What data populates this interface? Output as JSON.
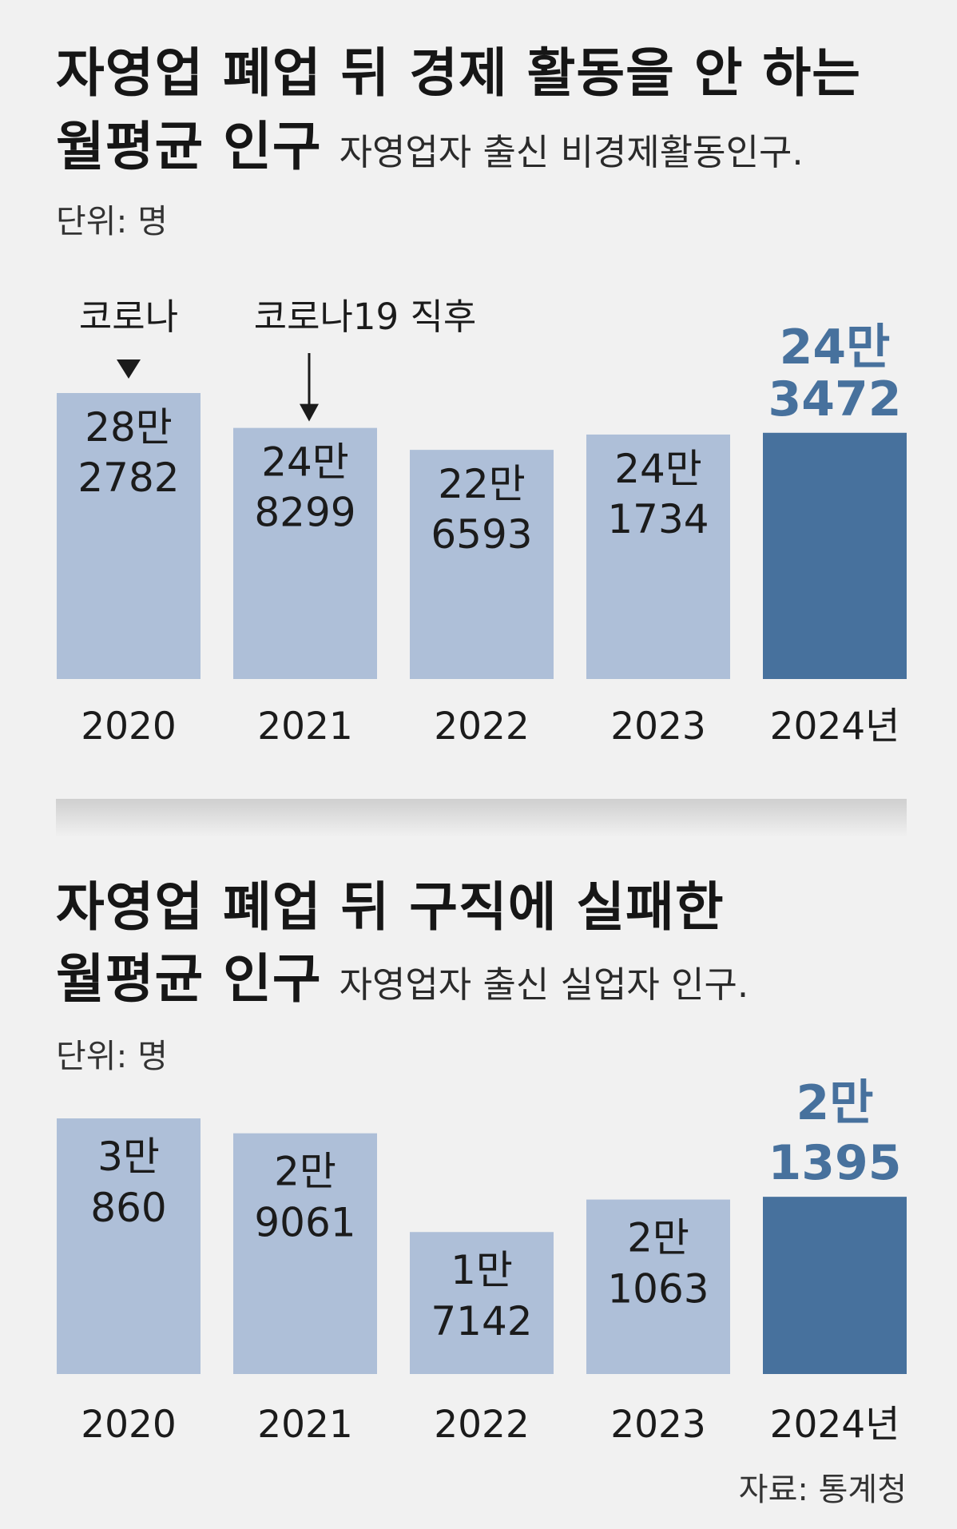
{
  "colors": {
    "background": "#f1f1f1",
    "bar_regular": "#aebfd8",
    "bar_highlight": "#47719d",
    "highlight_text": "#47719d",
    "text": "#1b1b1b"
  },
  "chart1": {
    "title_line1": "자영업 폐업 뒤 경제 활동을 안 하는",
    "title_line2": "월평균 인구",
    "subtitle": "자영업자 출신 비경제활동인구.",
    "unit": "단위: 명"
  },
  "chart2": {
    "title_line1": "자영업 폐업 뒤 구직에 실패한",
    "title_line2": "월평균 인구",
    "subtitle": "자영업자 출신 실업자 인구.",
    "unit": "단위: 명"
  },
  "source": "자료: 통계청",
  "chart_data": [
    {
      "type": "bar",
      "title": "자영업 폐업 뒤 경제 활동을 안 하는 월평균 인구",
      "subtitle": "자영업자 출신 비경제활동인구.",
      "unit": "단위: 명",
      "categories": [
        "2020",
        "2021",
        "2022",
        "2023",
        "2024년"
      ],
      "values": [
        282782,
        248299,
        226593,
        241734,
        243472
      ],
      "value_labels": [
        [
          "28만",
          "2782"
        ],
        [
          "24만",
          "8299"
        ],
        [
          "22만",
          "6593"
        ],
        [
          "24만",
          "1734"
        ],
        [
          "24만",
          "3472"
        ]
      ],
      "highlight_index": 4,
      "annotations": [
        {
          "category_index": 0,
          "text": "코로나",
          "marker": "▼"
        },
        {
          "category_index": 1,
          "text": "코로나19 직후",
          "marker": "arrow-down"
        }
      ],
      "grid": false,
      "legend": "none"
    },
    {
      "type": "bar",
      "title": "자영업 폐업 뒤 구직에 실패한 월평균 인구",
      "subtitle": "자영업자 출신 실업자 인구.",
      "unit": "단위: 명",
      "categories": [
        "2020",
        "2021",
        "2022",
        "2023",
        "2024년"
      ],
      "values": [
        30860,
        29061,
        17142,
        21063,
        21395
      ],
      "value_labels": [
        [
          "3만",
          "860"
        ],
        [
          "2만",
          "9061"
        ],
        [
          "1만",
          "7142"
        ],
        [
          "2만",
          "1063"
        ],
        [
          "2만",
          "1395"
        ]
      ],
      "highlight_index": 4,
      "annotations": [],
      "grid": false,
      "legend": "none"
    }
  ]
}
